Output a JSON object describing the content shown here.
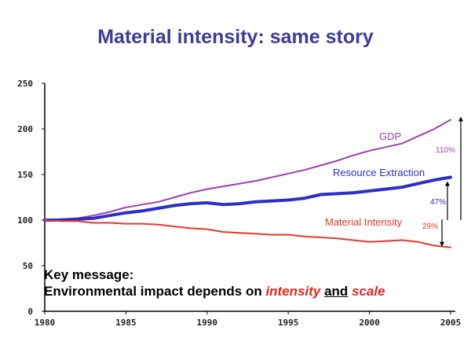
{
  "title": "Material intensity: same story",
  "message": {
    "line1": "Key message:",
    "line2_prefix": "Environmental impact depends on ",
    "word_intensity": "intensity",
    "word_and": "and",
    "word_scale": "scale"
  },
  "colors": {
    "gdp": "#9b3fae",
    "resource": "#2b2fc4",
    "material": "#e0392f",
    "title": "#3d3b96",
    "axis": "#000000"
  },
  "chart_data": {
    "type": "line",
    "x": [
      1980,
      1981,
      1982,
      1983,
      1984,
      1985,
      1986,
      1987,
      1988,
      1989,
      1990,
      1991,
      1992,
      1993,
      1994,
      1995,
      1996,
      1997,
      1998,
      1999,
      2000,
      2001,
      2002,
      2003,
      2004,
      2005
    ],
    "series": [
      {
        "name": "GDP",
        "color": "#9b3fae",
        "values": [
          100,
          101,
          102,
          105,
          109,
          114,
          117,
          120,
          125,
          130,
          134,
          137,
          140,
          143,
          147,
          151,
          155,
          160,
          165,
          171,
          176,
          180,
          184,
          192,
          200,
          210
        ]
      },
      {
        "name": "Resource Extraction",
        "color": "#2b2fc4",
        "values": [
          100,
          100,
          101,
          102,
          105,
          108,
          110,
          113,
          116,
          118,
          119,
          117,
          118,
          120,
          121,
          122,
          124,
          128,
          129,
          130,
          132,
          134,
          136,
          140,
          144,
          147
        ]
      },
      {
        "name": "Material Intensity",
        "color": "#e0392f",
        "values": [
          100,
          99,
          99,
          97,
          97,
          96,
          96,
          95,
          93,
          91,
          90,
          87,
          86,
          85,
          84,
          84,
          82,
          81,
          80,
          78,
          76,
          77,
          78,
          76,
          72,
          70
        ]
      }
    ],
    "xticks": [
      1980,
      1985,
      1990,
      1995,
      2000,
      2005
    ],
    "yticks": [
      0,
      50,
      100,
      150,
      200,
      250
    ],
    "xlim": [
      1980,
      2005
    ],
    "ylim": [
      0,
      250
    ],
    "grid": false,
    "annotations": [
      {
        "text": "110%",
        "color": "#9b3fae"
      },
      {
        "text": "47%",
        "color": "#2b2fc4"
      },
      {
        "text": "29%",
        "color": "#e0392f"
      }
    ]
  }
}
